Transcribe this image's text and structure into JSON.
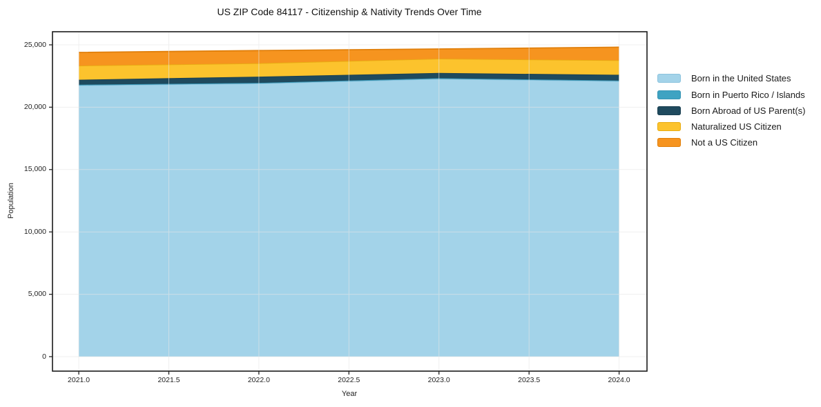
{
  "figure": {
    "title": "US ZIP Code 84117 - Citizenship & Nativity Trends Over Time",
    "xlabel": "Year",
    "ylabel": "Population"
  },
  "chart_data": {
    "type": "area",
    "stacked": true,
    "title": "US ZIP Code 84117 - Citizenship & Nativity Trends Over Time",
    "xlabel": "Year",
    "ylabel": "Population",
    "x": [
      2021,
      2022,
      2023,
      2024
    ],
    "series": [
      {
        "name": "Born in the United States",
        "values": [
          21750,
          21900,
          22270,
          22090
        ],
        "color": "#a3d3e9",
        "line_color": "#8cc3dd"
      },
      {
        "name": "Born in Puerto Rico / Islands",
        "values": [
          50,
          50,
          50,
          50
        ],
        "color": "#3fa3c2",
        "line_color": "#3795b4"
      },
      {
        "name": "Born Abroad of US Parent(s)",
        "values": [
          400,
          500,
          420,
          460
        ],
        "color": "#1f4a5e",
        "line_color": "#1a3f51"
      },
      {
        "name": "Naturalized US Citizen",
        "values": [
          1130,
          1070,
          1150,
          1160
        ],
        "color": "#fcc32d",
        "line_color": "#e8ac12"
      },
      {
        "name": "Not a US Citizen",
        "values": [
          1060,
          1020,
          780,
          1050
        ],
        "color": "#f6941f",
        "line_color": "#e07f0b"
      }
    ],
    "totals": [
      24390,
      24540,
      24670,
      24810
    ],
    "xlim": [
      2020.854,
      2024.155
    ],
    "ylim": [
      -1162,
      26050
    ],
    "xticks": {
      "values": [
        2021.0,
        2021.5,
        2022.0,
        2022.5,
        2023.0,
        2023.5,
        2024.0
      ],
      "labels": [
        "2021.0",
        "2021.5",
        "2022.0",
        "2022.5",
        "2023.0",
        "2023.5",
        "2024.0"
      ]
    },
    "yticks": {
      "values": [
        0,
        5000,
        10000,
        15000,
        20000,
        25000
      ],
      "labels": [
        "0",
        "5,000",
        "10,000",
        "15,000",
        "20,000",
        "25,000"
      ]
    },
    "grid": true,
    "grid_color": "#e6e6e6",
    "spine_color": "#1a1a1a",
    "legend_position": "right"
  }
}
